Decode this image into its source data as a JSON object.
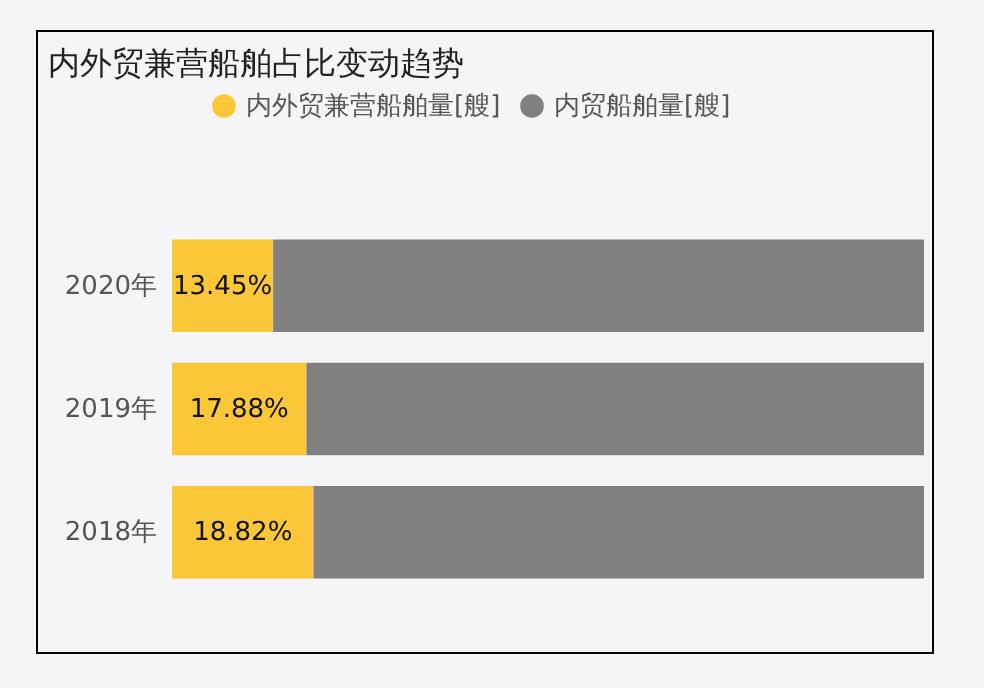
{
  "chart_data": {
    "type": "bar",
    "title": "内外贸兼营船舶占比变动趋势",
    "orientation": "horizontal",
    "stacked": true,
    "categories": [
      "2020年",
      "2019年",
      "2018年"
    ],
    "series": [
      {
        "name": "内外贸兼营船舶量[艘]",
        "color": "#f9c737",
        "values": [
          13.45,
          17.88,
          18.82
        ],
        "value_labels": [
          "13.45%",
          "17.88%",
          "18.82%"
        ]
      },
      {
        "name": "内贸船舶量[艘]",
        "color": "#808080",
        "values": [
          86.55,
          82.12,
          81.18
        ]
      }
    ],
    "xlim": [
      0,
      100
    ],
    "tick_labels": "y",
    "grid": false,
    "legend": "top"
  }
}
